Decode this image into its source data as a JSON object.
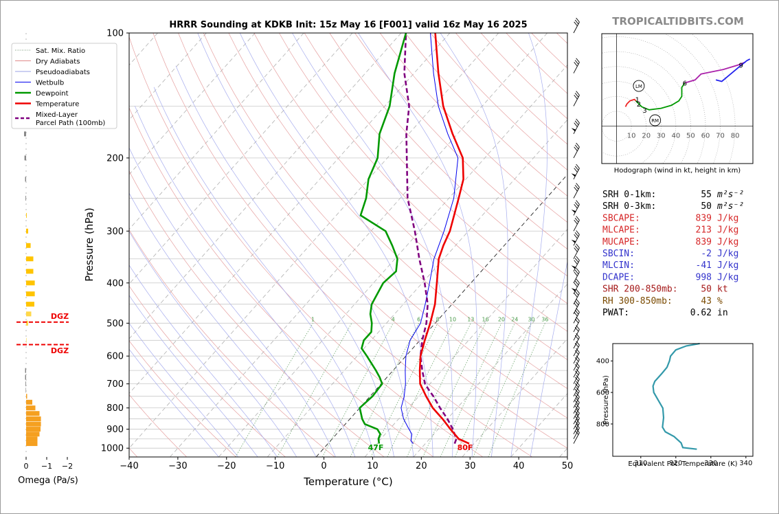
{
  "title": "HRRR Sounding at KDKB Init: 15z May 16 [F001] valid 16z May 16 2025",
  "watermark": "TROPICALTIDBITS.COM",
  "skewt": {
    "xlabel": "Temperature (°C)",
    "ylabel": "Pressure (hPa)",
    "x_ticks": [
      "−40",
      "−30",
      "−20",
      "−10",
      "0",
      "10",
      "20",
      "30",
      "40",
      "50"
    ],
    "p_ticks": [
      "100",
      "200",
      "300",
      "400",
      "500",
      "600",
      "700",
      "800",
      "900",
      "1000"
    ],
    "mixing_ratio_labels": [
      "1",
      "4",
      "6",
      "8",
      "10",
      "13",
      "16",
      "20",
      "24",
      "30",
      "36"
    ],
    "surface_temp_label": "80F",
    "surface_dew_label": "47F",
    "dgz_label": "DGZ"
  },
  "legend": [
    {
      "label": "Sat. Mix. Ratio",
      "color": "#7a9a7a",
      "style": "dotted"
    },
    {
      "label": "Dry Adiabats",
      "color": "#e08a8a",
      "style": "solid"
    },
    {
      "label": "Pseudoadiabats",
      "color": "#9aa0e6",
      "style": "solid"
    },
    {
      "label": "Wetbulb",
      "color": "#0000ee",
      "style": "solid"
    },
    {
      "label": "Dewpoint",
      "color": "#009900",
      "style": "thick"
    },
    {
      "label": "Temperature",
      "color": "#ee0000",
      "style": "thick"
    },
    {
      "label": "Mixed-Layer\nParcel Path (100mb)",
      "color": "#7f007f",
      "style": "dashed"
    }
  ],
  "omega": {
    "xlabel": "Omega (Pa/s)",
    "ticks": [
      "0",
      "−1",
      "−2"
    ]
  },
  "hodograph": {
    "caption": "Hodograph (wind in kt, height in km)",
    "ring_labels": [
      "10",
      "20",
      "30",
      "40",
      "50",
      "60",
      "70",
      "80"
    ],
    "storm_motion": {
      "left": "LM",
      "right": "RM"
    },
    "height_labels": [
      "1",
      "2",
      "3",
      "6",
      "9"
    ]
  },
  "indices": [
    {
      "name": "SRH 0-1km:",
      "value": "55",
      "unit": "m²s⁻²",
      "color": "#000000"
    },
    {
      "name": "SRH 0-3km:",
      "value": "50",
      "unit": "m²s⁻²",
      "color": "#000000"
    },
    {
      "name": "SBCAPE:",
      "value": "839",
      "unit": "J/kg",
      "color": "#d62728"
    },
    {
      "name": "MLCAPE:",
      "value": "213",
      "unit": "J/kg",
      "color": "#d62728"
    },
    {
      "name": "MUCAPE:",
      "value": "839",
      "unit": "J/kg",
      "color": "#d62728"
    },
    {
      "name": "SBCIN:",
      "value": "-2",
      "unit": "J/kg",
      "color": "#3333cc"
    },
    {
      "name": "MLCIN:",
      "value": "-41",
      "unit": "J/kg",
      "color": "#3333cc"
    },
    {
      "name": "DCAPE:",
      "value": "998",
      "unit": "J/kg",
      "color": "#3333cc"
    },
    {
      "name": "SHR 200-850mb:",
      "value": "50",
      "unit": "kt",
      "color": "#a51a1a"
    },
    {
      "name": "RH 300-850mb:",
      "value": "43",
      "unit": "%",
      "color": "#7a4a00"
    },
    {
      "name": "PWAT:",
      "value": "0.62",
      "unit": "in",
      "color": "#000000"
    }
  ],
  "theta_e": {
    "xlabel": "Equivalent Pot. Temperature (K)",
    "ylabel": "Pressure (hPa)",
    "x_ticks": [
      "310",
      "320",
      "330",
      "340"
    ],
    "y_ticks": [
      "400",
      "600",
      "800"
    ]
  },
  "chart_data": [
    {
      "type": "line",
      "name": "skew-t",
      "title": "HRRR Sounding at KDKB Init: 15z May 16 [F001] valid 16z May 16 2025",
      "xlabel": "Temperature (°C)",
      "ylabel": "Pressure (hPa)",
      "xlim": [
        -40,
        50
      ],
      "ylim": [
        1050,
        100
      ],
      "y_scale": "log",
      "series": [
        {
          "name": "Temperature",
          "color": "#ee0000",
          "points": [
            [
              975,
              29
            ],
            [
              950,
              26
            ],
            [
              900,
              22.5
            ],
            [
              850,
              19
            ],
            [
              800,
              15
            ],
            [
              750,
              11.5
            ],
            [
              700,
              8
            ],
            [
              650,
              5.5
            ],
            [
              600,
              3
            ],
            [
              550,
              1
            ],
            [
              500,
              -1
            ],
            [
              450,
              -3.5
            ],
            [
              400,
              -7
            ],
            [
              350,
              -11
            ],
            [
              325,
              -12.5
            ],
            [
              300,
              -13.8
            ],
            [
              250,
              -18
            ],
            [
              225,
              -20.5
            ],
            [
              200,
              -24.5
            ],
            [
              175,
              -31
            ],
            [
              150,
              -38
            ],
            [
              125,
              -45
            ],
            [
              100,
              -53
            ]
          ]
        },
        {
          "name": "Dewpoint",
          "color": "#009900",
          "points": [
            [
              975,
              10.5
            ],
            [
              950,
              9.5
            ],
            [
              925,
              9
            ],
            [
              900,
              7.5
            ],
            [
              875,
              4
            ],
            [
              850,
              2.5
            ],
            [
              800,
              0
            ],
            [
              750,
              0.5
            ],
            [
              700,
              0.2
            ],
            [
              675,
              -1.5
            ],
            [
              650,
              -3.5
            ],
            [
              600,
              -8
            ],
            [
              575,
              -10.5
            ],
            [
              550,
              -11.5
            ],
            [
              525,
              -11.5
            ],
            [
              500,
              -13
            ],
            [
              475,
              -15
            ],
            [
              450,
              -16.5
            ],
            [
              400,
              -18
            ],
            [
              375,
              -17.5
            ],
            [
              350,
              -19.5
            ],
            [
              325,
              -23
            ],
            [
              300,
              -27
            ],
            [
              275,
              -35
            ],
            [
              250,
              -37
            ],
            [
              225,
              -40
            ],
            [
              200,
              -42
            ],
            [
              175,
              -46
            ],
            [
              150,
              -49
            ],
            [
              125,
              -54
            ],
            [
              100,
              -59
            ]
          ]
        },
        {
          "name": "Wetbulb",
          "color": "#0000ee",
          "points": [
            [
              975,
              17.5
            ],
            [
              960,
              16.5
            ],
            [
              925,
              15.5
            ],
            [
              900,
              14
            ],
            [
              850,
              11
            ],
            [
              800,
              8.5
            ],
            [
              750,
              7
            ],
            [
              700,
              5
            ],
            [
              650,
              2.5
            ],
            [
              600,
              0
            ],
            [
              550,
              -2
            ],
            [
              500,
              -3
            ],
            [
              450,
              -5.5
            ],
            [
              400,
              -8.5
            ],
            [
              350,
              -12
            ],
            [
              300,
              -15
            ],
            [
              250,
              -19
            ],
            [
              200,
              -25.5
            ],
            [
              175,
              -32
            ],
            [
              150,
              -39
            ],
            [
              125,
              -46
            ],
            [
              100,
              -54
            ]
          ]
        },
        {
          "name": "Mixed-Layer Parcel Path (100mb)",
          "color": "#7f007f",
          "points": [
            [
              975,
              26
            ],
            [
              950,
              25.5
            ],
            [
              900,
              23
            ],
            [
              850,
              20
            ],
            [
              800,
              16.5
            ],
            [
              750,
              13
            ],
            [
              725,
              11
            ],
            [
              700,
              9
            ],
            [
              650,
              6
            ],
            [
              600,
              3
            ],
            [
              550,
              0.5
            ],
            [
              500,
              -1.8
            ],
            [
              450,
              -5
            ],
            [
              400,
              -9.5
            ],
            [
              350,
              -15
            ],
            [
              300,
              -21
            ],
            [
              250,
              -28.5
            ],
            [
              200,
              -36
            ],
            [
              175,
              -40.5
            ],
            [
              150,
              -45
            ],
            [
              125,
              -52
            ],
            [
              100,
              -59
            ]
          ]
        }
      ],
      "dgz_pressures": [
        497,
        563
      ]
    },
    {
      "type": "bar",
      "name": "omega",
      "xlabel": "Omega (Pa/s)",
      "xlim": [
        0.5,
        -2.5
      ],
      "orientation": "horizontal",
      "p": [
        975,
        950,
        925,
        900,
        875,
        850,
        825,
        800,
        775,
        750,
        725,
        700,
        675,
        650,
        625,
        600,
        575,
        550,
        525,
        500,
        475,
        450,
        425,
        400,
        375,
        350,
        325,
        300,
        275,
        250,
        225,
        200,
        175,
        150,
        125,
        100
      ],
      "values": [
        -0.55,
        -0.55,
        -0.65,
        -0.7,
        -0.72,
        -0.72,
        -0.65,
        -0.45,
        -0.3,
        -0.05,
        0.02,
        0.03,
        0.05,
        0.05,
        0,
        0,
        0,
        -0.02,
        0,
        -0.1,
        -0.25,
        -0.4,
        -0.42,
        -0.42,
        -0.35,
        -0.35,
        -0.22,
        -0.1,
        -0.03,
        0.03,
        0.05,
        0.08,
        0.1,
        0.12,
        0.03,
        0
      ]
    },
    {
      "type": "line",
      "name": "hodograph",
      "xlim": [
        -10,
        92
      ],
      "ylim": [
        -25,
        62
      ],
      "ring_radii": [
        10,
        20,
        30,
        40,
        50,
        60,
        70,
        80
      ],
      "segments": [
        {
          "color": "#ee2222",
          "points": [
            [
              6,
              13
            ],
            [
              7,
              15
            ],
            [
              9,
              17
            ],
            [
              12,
              18
            ],
            [
              13,
              17
            ]
          ]
        },
        {
          "color": "#009900",
          "points": [
            [
              13,
              17
            ],
            [
              17,
              13
            ],
            [
              22,
              11
            ],
            [
              30,
              12
            ],
            [
              37,
              14
            ],
            [
              42,
              17
            ],
            [
              44,
              20
            ],
            [
              44,
              26
            ],
            [
              46,
              29
            ]
          ]
        },
        {
          "color": "#aa22aa",
          "points": [
            [
              46,
              29
            ],
            [
              53,
              31
            ],
            [
              57,
              35
            ],
            [
              62,
              36
            ],
            [
              72,
              38
            ],
            [
              82,
              41
            ],
            [
              87,
              43
            ]
          ]
        },
        {
          "color": "#2222ee",
          "points": [
            [
              67,
              31
            ],
            [
              71,
              30
            ],
            [
              77,
              35
            ],
            [
              83,
              40
            ],
            [
              88,
              44
            ],
            [
              90,
              45
            ]
          ]
        }
      ],
      "height_points": [
        {
          "label": "1",
          "u": 14,
          "v": 18
        },
        {
          "label": "2",
          "u": 15,
          "v": 15
        },
        {
          "label": "3",
          "u": 19,
          "v": 11
        },
        {
          "label": "6",
          "u": 46,
          "v": 29
        },
        {
          "label": "9",
          "u": 84,
          "v": 41
        }
      ],
      "storm_motion_points": [
        {
          "label": "LM",
          "u": 15,
          "v": 27
        },
        {
          "label": "RM",
          "u": 26,
          "v": 4
        }
      ]
    },
    {
      "type": "line",
      "name": "equivalent-potential-temperature",
      "xlabel": "Equivalent Pot. Temperature (K)",
      "ylabel": "Pressure (hPa)",
      "xlim": [
        302,
        342
      ],
      "ylim": [
        1005,
        290
      ],
      "series": [
        {
          "name": "theta-e",
          "color": "#3399aa",
          "points": [
            [
              326.8,
              290
            ],
            [
              323,
              305
            ],
            [
              320,
              330
            ],
            [
              318.5,
              370
            ],
            [
              318.2,
              400
            ],
            [
              317.5,
              440
            ],
            [
              316,
              480
            ],
            [
              314,
              530
            ],
            [
              313.5,
              560
            ],
            [
              313.7,
              600
            ],
            [
              315,
              650
            ],
            [
              316.3,
              700
            ],
            [
              316.5,
              760
            ],
            [
              316.2,
              820
            ],
            [
              317,
              850
            ],
            [
              319.5,
              880
            ],
            [
              321.5,
              920
            ],
            [
              322,
              950
            ],
            [
              326,
              960
            ]
          ]
        }
      ]
    }
  ]
}
